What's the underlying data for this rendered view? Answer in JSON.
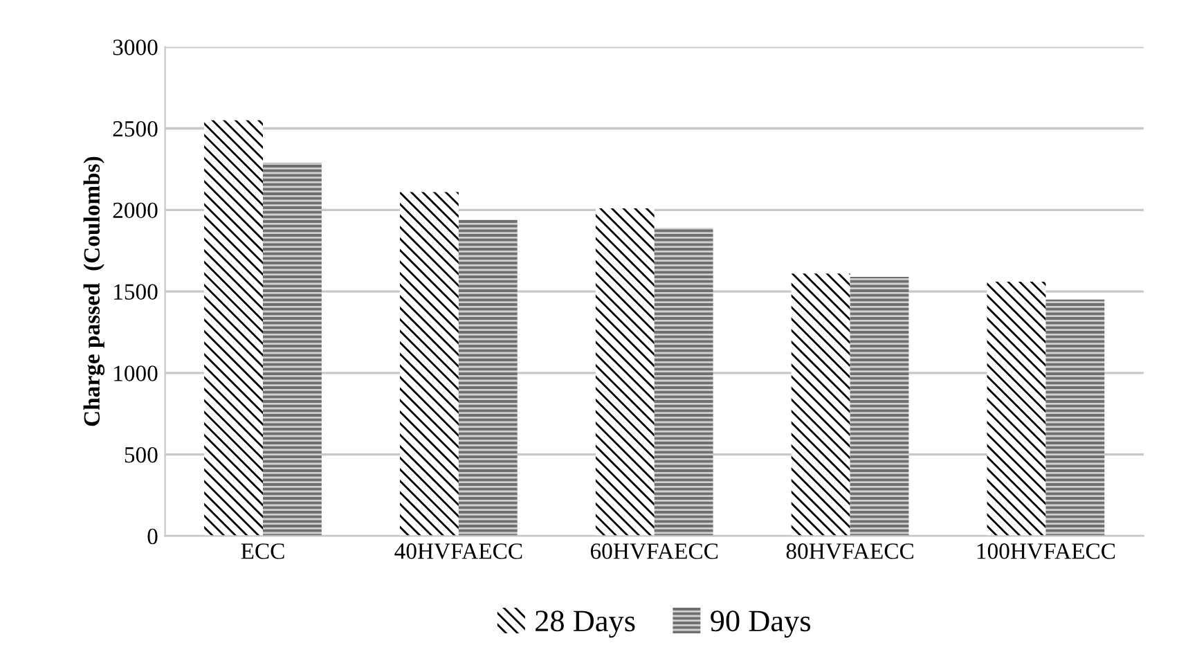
{
  "chart_data": {
    "type": "bar",
    "ylabel": "Charge passed  (Coulombs)",
    "categories": [
      "ECC",
      "40HVFAECC",
      "60HVFAECC",
      "80HVFAECC",
      "100HVFAECC"
    ],
    "series": [
      {
        "name": "28 Days",
        "color": "#000000",
        "values": [
          2550,
          2110,
          2010,
          1610,
          1560
        ]
      },
      {
        "name": "90 Days",
        "color": "#707070",
        "values": [
          2290,
          1940,
          1890,
          1590,
          1450
        ]
      }
    ],
    "ylim": [
      0,
      3000
    ],
    "yticks": [
      0,
      500,
      1000,
      1500,
      2000,
      2500,
      3000
    ],
    "grid": "y",
    "legend": "bottom"
  }
}
